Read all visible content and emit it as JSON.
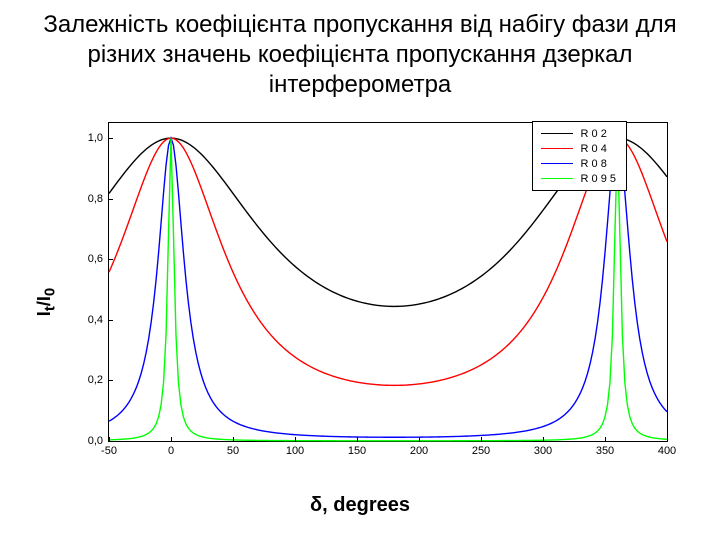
{
  "title": "Залежність коефіцієнта пропускання від набігу фази для різних значень коефіцієнта пропускання дзеркал інтерферометра",
  "chart": {
    "type": "line",
    "xlabel": "δ, degrees",
    "ylabel": "I_t / I_0",
    "xlim": [
      -50,
      400
    ],
    "ylim": [
      0.0,
      1.05
    ],
    "xticks": [
      -50,
      0,
      50,
      100,
      150,
      200,
      250,
      300,
      350,
      400
    ],
    "yticks": [
      0.0,
      0.2,
      0.4,
      0.6,
      0.8,
      1.0
    ],
    "ytick_labels": [
      "0,0",
      "0,2",
      "0,4",
      "0,6",
      "0,8",
      "1,0"
    ],
    "x_sample_step": 2,
    "background_color": "#ffffff",
    "axis_color": "#000000",
    "tick_fontsize": 11,
    "label_fontsize": 20,
    "title_fontsize": 24,
    "line_width": 1.4,
    "series": [
      {
        "label": "R 0 2",
        "R": 0.2,
        "color": "#000000"
      },
      {
        "label": "R 0 4",
        "R": 0.4,
        "color": "#ff0000"
      },
      {
        "label": "R 0 8",
        "R": 0.8,
        "color": "#0000ff"
      },
      {
        "label": "R 0 9 5",
        "R": 0.95,
        "color": "#00ff00"
      }
    ],
    "legend": {
      "position": "top-right",
      "border_color": "#000000",
      "background_color": "#ffffff",
      "fontsize": 11
    }
  }
}
